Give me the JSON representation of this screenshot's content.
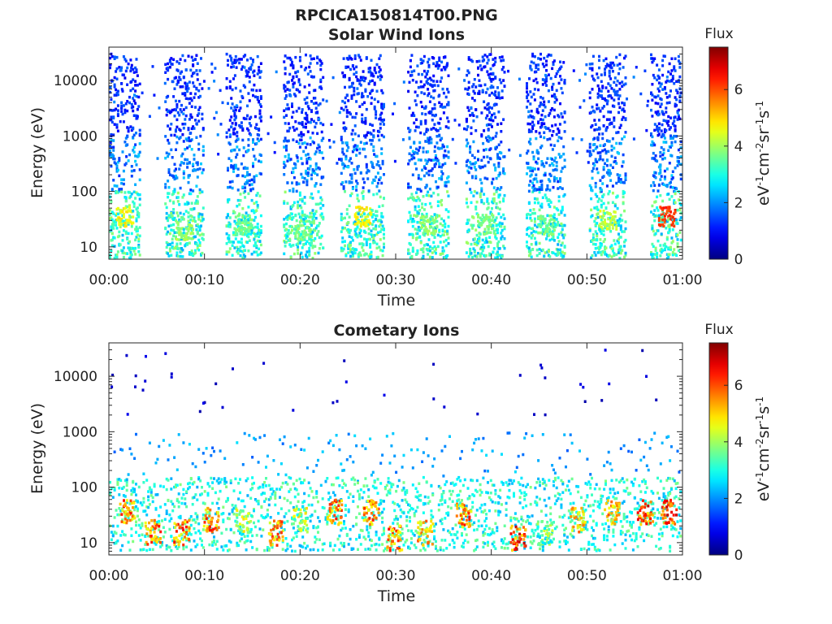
{
  "figure": {
    "title": "RPCICA150814T00.PNG"
  },
  "chart_data": [
    {
      "type": "heatmap",
      "title": "Solar Wind Ions",
      "xlabel": "Time",
      "ylabel": "Energy (eV)",
      "x_range": [
        "00:00",
        "01:00"
      ],
      "x_ticks": [
        "00:00",
        "00:10",
        "00:20",
        "00:30",
        "00:40",
        "00:50",
        "01:00"
      ],
      "y_scale": "log",
      "y_range": [
        6,
        40000
      ],
      "y_ticks": [
        10,
        100,
        1000,
        10000
      ],
      "y_tick_labels": [
        "10",
        "100",
        "1000",
        "10000"
      ],
      "colorbar": {
        "title": "Flux",
        "label_parts": [
          "eV",
          "-1",
          "cm",
          "-2",
          "sr",
          "-1",
          "s",
          "-1"
        ],
        "range": [
          0,
          7.5
        ],
        "ticks": [
          0,
          2,
          4,
          6
        ],
        "colormap": "jet"
      },
      "bursts": [
        {
          "start_min": 0.0,
          "end_min": 3.2,
          "peak_energy_ev": 35,
          "peak_flux": 5.0
        },
        {
          "start_min": 5.8,
          "end_min": 9.8,
          "peak_energy_ev": 20,
          "peak_flux": 4.3
        },
        {
          "start_min": 12.2,
          "end_min": 15.8,
          "peak_energy_ev": 25,
          "peak_flux": 4.0
        },
        {
          "start_min": 18.2,
          "end_min": 22.3,
          "peak_energy_ev": 20,
          "peak_flux": 4.0
        },
        {
          "start_min": 24.2,
          "end_min": 28.7,
          "peak_energy_ev": 35,
          "peak_flux": 5.0
        },
        {
          "start_min": 31.2,
          "end_min": 35.5,
          "peak_energy_ev": 25,
          "peak_flux": 4.2
        },
        {
          "start_min": 37.3,
          "end_min": 41.3,
          "peak_energy_ev": 25,
          "peak_flux": 4.0
        },
        {
          "start_min": 43.6,
          "end_min": 47.6,
          "peak_energy_ev": 25,
          "peak_flux": 4.0
        },
        {
          "start_min": 50.2,
          "end_min": 54.0,
          "peak_energy_ev": 30,
          "peak_flux": 4.6
        },
        {
          "start_min": 56.6,
          "end_min": 60.0,
          "peak_energy_ev": 35,
          "peak_flux": 6.5
        }
      ],
      "background_energy_range_ev": [
        6,
        30000
      ]
    },
    {
      "type": "heatmap",
      "title": "Cometary Ions",
      "xlabel": "Time",
      "ylabel": "Energy (eV)",
      "x_range": [
        "00:00",
        "01:00"
      ],
      "x_ticks": [
        "00:00",
        "00:10",
        "00:20",
        "00:30",
        "00:40",
        "00:50",
        "01:00"
      ],
      "y_scale": "log",
      "y_range": [
        6,
        40000
      ],
      "y_ticks": [
        10,
        100,
        1000,
        10000
      ],
      "y_tick_labels": [
        "10",
        "100",
        "1000",
        "10000"
      ],
      "colorbar": {
        "title": "Flux",
        "label_parts": [
          "eV",
          "-1",
          "cm",
          "-2",
          "sr",
          "-1",
          "s",
          "-1"
        ],
        "range": [
          0,
          7.5
        ],
        "ticks": [
          0,
          2,
          4,
          6
        ],
        "colormap": "jet"
      },
      "hot_spots": [
        {
          "t_min": 1.8,
          "energy_ev": 35,
          "flux": 6.5
        },
        {
          "t_min": 4.5,
          "energy_ev": 15,
          "flux": 6.5
        },
        {
          "t_min": 7.5,
          "energy_ev": 15,
          "flux": 6.5
        },
        {
          "t_min": 10.6,
          "energy_ev": 25,
          "flux": 6.5
        },
        {
          "t_min": 14.0,
          "energy_ev": 25,
          "flux": 5.0
        },
        {
          "t_min": 17.3,
          "energy_ev": 15,
          "flux": 6.5
        },
        {
          "t_min": 20.0,
          "energy_ev": 25,
          "flux": 5.0
        },
        {
          "t_min": 23.5,
          "energy_ev": 35,
          "flux": 6.5
        },
        {
          "t_min": 27.3,
          "energy_ev": 35,
          "flux": 6.5
        },
        {
          "t_min": 29.8,
          "energy_ev": 12,
          "flux": 6.5
        },
        {
          "t_min": 33.0,
          "energy_ev": 15,
          "flux": 6.0
        },
        {
          "t_min": 37.0,
          "energy_ev": 30,
          "flux": 6.5
        },
        {
          "t_min": 42.7,
          "energy_ev": 12,
          "flux": 7.0
        },
        {
          "t_min": 45.5,
          "energy_ev": 15,
          "flux": 4.5
        },
        {
          "t_min": 49.0,
          "energy_ev": 25,
          "flux": 6.0
        },
        {
          "t_min": 52.5,
          "energy_ev": 35,
          "flux": 6.0
        },
        {
          "t_min": 56.0,
          "energy_ev": 35,
          "flux": 7.0
        },
        {
          "t_min": 58.5,
          "energy_ev": 35,
          "flux": 7.0
        }
      ]
    }
  ],
  "colors": {
    "axis": "#262626",
    "background": "#ffffff"
  }
}
